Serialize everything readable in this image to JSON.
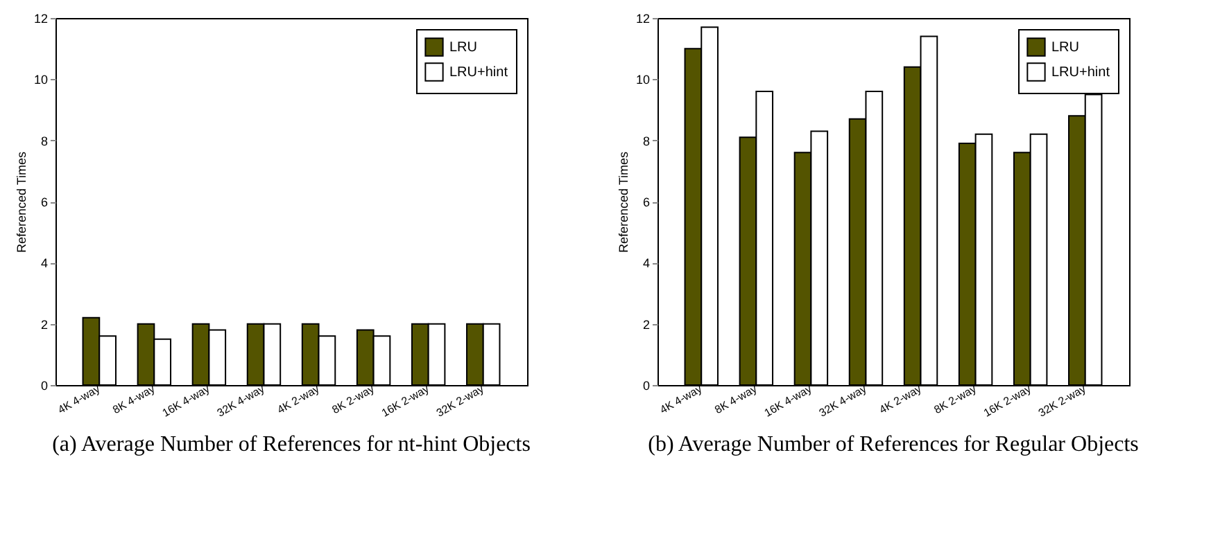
{
  "chart_data": [
    {
      "type": "bar",
      "title": "(a) Average Number of References for nt-hint Objects",
      "ylabel": "Referenced Times",
      "categories": [
        "4K 4-way",
        "8K 4-way",
        "16K 4-way",
        "32K 4-way",
        "4K 2-way",
        "8K 2-way",
        "16K 2-way",
        "32K 2-way"
      ],
      "series": [
        {
          "name": "LRU",
          "color": "#545400",
          "values": [
            2.2,
            2.0,
            2.0,
            2.0,
            2.0,
            1.8,
            2.0,
            2.0
          ]
        },
        {
          "name": "LRU+hint",
          "color": "#ffffff",
          "values": [
            1.6,
            1.5,
            1.8,
            2.0,
            1.6,
            1.6,
            2.0,
            2.0
          ]
        }
      ],
      "ylim": [
        0,
        12
      ],
      "yticks": [
        0,
        2,
        4,
        6,
        8,
        10,
        12
      ],
      "legend": "top right"
    },
    {
      "type": "bar",
      "title": "(b) Average Number of References for Regular Objects",
      "ylabel": "Referenced Times",
      "categories": [
        "4K 4-way",
        "8K 4-way",
        "16K 4-way",
        "32K 4-way",
        "4K 2-way",
        "8K 2-way",
        "16K 2-way",
        "32K 2-way"
      ],
      "series": [
        {
          "name": "LRU",
          "color": "#545400",
          "values": [
            11.0,
            8.1,
            7.6,
            8.7,
            10.4,
            7.9,
            7.6,
            8.8
          ]
        },
        {
          "name": "LRU+hint",
          "color": "#ffffff",
          "values": [
            11.7,
            9.6,
            8.3,
            9.6,
            11.4,
            8.2,
            8.2,
            9.5
          ]
        }
      ],
      "ylim": [
        0,
        12
      ],
      "yticks": [
        0,
        2,
        4,
        6,
        8,
        10,
        12
      ],
      "legend": "top right"
    }
  ]
}
